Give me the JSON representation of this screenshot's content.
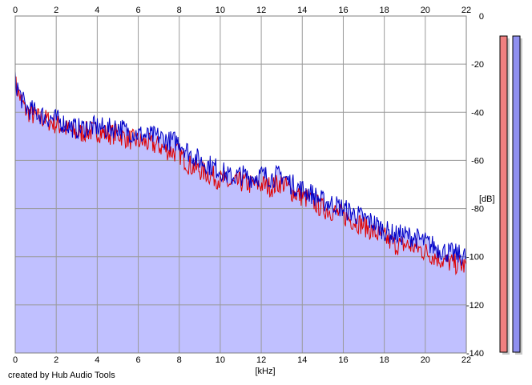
{
  "credit": "created by Hub Audio Tools",
  "chart_data": {
    "type": "area",
    "xlabel": "[kHz]",
    "ylabel": "[dB]",
    "xlim": [
      0,
      22
    ],
    "ylim": [
      -140,
      0
    ],
    "x_ticks": [
      0,
      2,
      4,
      6,
      8,
      10,
      12,
      14,
      16,
      18,
      20,
      22
    ],
    "y_ticks": [
      0,
      -20,
      -40,
      -60,
      -80,
      -100,
      -120,
      -140
    ],
    "x_tick_labels": [
      "0",
      "2",
      "4",
      "6",
      "8",
      "10",
      "12",
      "14",
      "16",
      "18",
      "20",
      "22"
    ],
    "y_tick_labels": [
      "0",
      "-20",
      "-40",
      "-60",
      "-80",
      "-100",
      "-120",
      "-140"
    ],
    "grid": true,
    "series": [
      {
        "color": "#e00000",
        "x": [
          0,
          0.25,
          0.5,
          1,
          1.5,
          2,
          2.5,
          3,
          3.5,
          4,
          4.5,
          5,
          5.5,
          6,
          6.5,
          7,
          7.5,
          8,
          8.5,
          9,
          9.5,
          10,
          10.5,
          11,
          11.5,
          12,
          12.5,
          13,
          13.5,
          14,
          14.5,
          15,
          15.5,
          16,
          16.5,
          17,
          17.5,
          18,
          18.5,
          19,
          19.5,
          20,
          20.5,
          21,
          21.5,
          22
        ],
        "values": [
          -28,
          -34,
          -39,
          -42,
          -43,
          -45,
          -47,
          -49,
          -48,
          -48,
          -49,
          -49,
          -51,
          -52,
          -53,
          -54,
          -56,
          -57,
          -62,
          -64,
          -66,
          -68,
          -70,
          -69,
          -70,
          -70,
          -71,
          -69,
          -73,
          -75,
          -77,
          -80,
          -81,
          -83,
          -85,
          -87,
          -90,
          -92,
          -95,
          -95,
          -96,
          -98,
          -100,
          -102,
          -103,
          -104
        ]
      },
      {
        "color": "#0000c8",
        "x": [
          0,
          0.25,
          0.5,
          1,
          1.5,
          2,
          2.5,
          3,
          3.5,
          4,
          4.5,
          5,
          5.5,
          6,
          6.5,
          7,
          7.5,
          8,
          8.5,
          9,
          9.5,
          10,
          10.5,
          11,
          11.5,
          12,
          12.5,
          13,
          13.5,
          14,
          14.5,
          15,
          15.5,
          16,
          16.5,
          17,
          17.5,
          18,
          18.5,
          19,
          19.5,
          20,
          20.5,
          21,
          21.5,
          22
        ],
        "values": [
          -27,
          -33,
          -38,
          -40,
          -42,
          -43,
          -45,
          -47,
          -46,
          -46,
          -47,
          -46,
          -48,
          -49,
          -50,
          -50,
          -52,
          -52,
          -57,
          -60,
          -62,
          -64,
          -67,
          -66,
          -67,
          -66,
          -67,
          -66,
          -70,
          -72,
          -74,
          -77,
          -78,
          -80,
          -82,
          -84,
          -86,
          -89,
          -91,
          -91,
          -92,
          -94,
          -96,
          -98,
          -99,
          -100
        ]
      }
    ],
    "fill_color": "#c0c0ff",
    "level_meters": [
      {
        "color": "#f08080",
        "fraction": 1.0
      },
      {
        "color": "#9090f0",
        "fraction": 1.0
      }
    ]
  }
}
